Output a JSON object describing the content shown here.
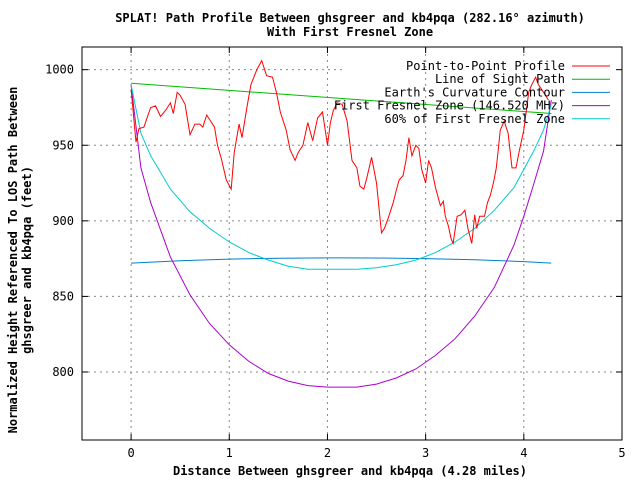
{
  "chart_data": {
    "type": "line",
    "title": [
      "SPLAT! Path Profile Between ghsgreer and kb4pqa (282.16° azimuth)",
      "With First Fresnel Zone"
    ],
    "xlabel": "Distance Between ghsgreer and kb4pqa (4.28 miles)",
    "ylabel": [
      "Normalized Height Referenced To LOS Path Between",
      "ghsgreer and kb4pqa (feet)"
    ],
    "xlim": [
      -0.5,
      5
    ],
    "ylim": [
      755,
      1015
    ],
    "xticks": [
      0,
      1,
      2,
      3,
      4,
      5
    ],
    "yticks": [
      800,
      850,
      900,
      950,
      1000
    ],
    "grid": true,
    "legend_position": "top-right",
    "series": [
      {
        "name": "Point-to-Point Profile",
        "color": "#ff0000",
        "x": [
          0,
          0.05,
          0.08,
          0.13,
          0.2,
          0.25,
          0.3,
          0.35,
          0.4,
          0.43,
          0.47,
          0.5,
          0.55,
          0.6,
          0.65,
          0.7,
          0.73,
          0.77,
          0.85,
          0.88,
          0.92,
          0.97,
          1.02,
          1.05,
          1.1,
          1.13,
          1.18,
          1.22,
          1.28,
          1.33,
          1.38,
          1.44,
          1.48,
          1.52,
          1.58,
          1.62,
          1.67,
          1.7,
          1.75,
          1.8,
          1.85,
          1.9,
          1.95,
          2.0,
          2.03,
          2.06,
          2.1,
          2.15,
          2.2,
          2.25,
          2.3,
          2.33,
          2.37,
          2.4,
          2.45,
          2.5,
          2.55,
          2.58,
          2.62,
          2.67,
          2.7,
          2.73,
          2.77,
          2.8,
          2.83,
          2.86,
          2.9,
          2.93,
          2.96,
          3.0,
          3.03,
          3.06,
          3.1,
          3.13,
          3.15,
          3.18,
          3.2,
          3.23,
          3.26,
          3.28,
          3.32,
          3.36,
          3.4,
          3.43,
          3.47,
          3.5,
          3.52,
          3.55,
          3.6,
          3.63,
          3.66,
          3.69,
          3.72,
          3.76,
          3.8,
          3.84,
          3.88,
          3.92,
          3.95,
          4.0,
          4.05,
          4.08,
          4.12,
          4.15,
          4.2,
          4.25
        ],
        "y": [
          987,
          952,
          961,
          962,
          975,
          976,
          969,
          973,
          978,
          971,
          985,
          983,
          977,
          957,
          964,
          964,
          962,
          970,
          962,
          950,
          941,
          927,
          921,
          945,
          964,
          955,
          975,
          990,
          1000,
          1006,
          996,
          995,
          985,
          972,
          960,
          947,
          940,
          945,
          950,
          965,
          953,
          968,
          972,
          950,
          965,
          973,
          978,
          977,
          966,
          940,
          935,
          923,
          921,
          928,
          942,
          925,
          892,
          895,
          902,
          912,
          920,
          927,
          930,
          940,
          955,
          943,
          950,
          948,
          934,
          925,
          940,
          935,
          922,
          915,
          910,
          913,
          903,
          897,
          888,
          885,
          903,
          904,
          907,
          895,
          885,
          904,
          895,
          903,
          903,
          912,
          917,
          925,
          935,
          960,
          966,
          958,
          935,
          935,
          945,
          960,
          985,
          990,
          995,
          990,
          985,
          980
        ]
      },
      {
        "name": "Line of Sight Path",
        "color": "#00bb00",
        "x": [
          0,
          4.28
        ],
        "y": [
          991,
          971
        ]
      },
      {
        "name": "Earth's Curvature Contour",
        "color": "#0080cc",
        "x": [
          0,
          0.5,
          1.0,
          1.5,
          2.0,
          2.14,
          2.5,
          3.0,
          3.5,
          4.0,
          4.28
        ],
        "y": [
          872,
          873.6,
          874.7,
          875.3,
          875.5,
          875.5,
          875.4,
          875,
          874.2,
          873,
          872
        ]
      },
      {
        "name": "First Fresnel Zone (146.520 MHz)",
        "color": "#aa00cc",
        "x": [
          0,
          0.1,
          0.2,
          0.4,
          0.6,
          0.8,
          1.0,
          1.2,
          1.4,
          1.6,
          1.8,
          2.0,
          2.14,
          2.3,
          2.5,
          2.7,
          2.9,
          3.1,
          3.3,
          3.5,
          3.7,
          3.9,
          4.0,
          4.1,
          4.2,
          4.28
        ],
        "y": [
          990,
          935,
          912,
          876,
          851,
          832,
          818,
          807,
          799,
          794,
          791,
          790,
          790,
          790,
          792,
          796,
          802,
          811,
          822,
          837,
          856,
          884,
          903,
          924,
          946,
          980
        ]
      },
      {
        "name": "60% of First Fresnel Zone",
        "color": "#00cccc",
        "x": [
          0,
          0.1,
          0.2,
          0.4,
          0.6,
          0.8,
          1.0,
          1.2,
          1.4,
          1.6,
          1.8,
          2.0,
          2.14,
          2.3,
          2.5,
          2.7,
          2.9,
          3.1,
          3.3,
          3.5,
          3.7,
          3.9,
          4.0,
          4.1,
          4.2,
          4.28
        ],
        "y": [
          990,
          958,
          943,
          921,
          906,
          895,
          886,
          879,
          874,
          870,
          868,
          868,
          868,
          868,
          869,
          871,
          874,
          879,
          886,
          895,
          907,
          922,
          934,
          946,
          960,
          977
        ]
      }
    ]
  }
}
